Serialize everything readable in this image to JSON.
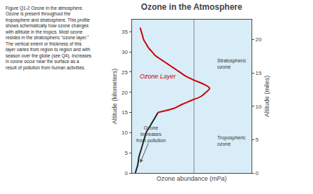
{
  "chart_data": {
    "type": "line",
    "title": "Ozone in the Atmosphere",
    "xlabel": "Ozone abundance (mPa)",
    "ylabel": "Altitude (kilometers)",
    "y2label": "Altitude (miles)",
    "xlim": [
      0,
      1
    ],
    "ylim": [
      0,
      38
    ],
    "yticks": [
      0,
      5,
      10,
      15,
      20,
      25,
      30,
      35
    ],
    "y2lim": [
      0,
      23
    ],
    "y2ticks": [
      0,
      5,
      10,
      15,
      20
    ],
    "tick_labels": "y",
    "grid": false,
    "series": [
      {
        "color": "#222222",
        "y": [
          0,
          1,
          2,
          3,
          4,
          5,
          6,
          7,
          8,
          9,
          10,
          11,
          12,
          13,
          14,
          15
        ],
        "x": [
          0.03,
          0.04,
          0.05,
          0.055,
          0.06,
          0.07,
          0.08,
          0.09,
          0.1,
          0.11,
          0.12,
          0.14,
          0.16,
          0.18,
          0.2,
          0.22
        ]
      },
      {
        "color": "#cc0000",
        "y": [
          15,
          16,
          17,
          18,
          19,
          20,
          21,
          22,
          23,
          24,
          25,
          26,
          27,
          28,
          29,
          30,
          31,
          32,
          33,
          34,
          35,
          36
        ],
        "x": [
          0.22,
          0.35,
          0.42,
          0.5,
          0.58,
          0.62,
          0.65,
          0.6,
          0.52,
          0.45,
          0.4,
          0.35,
          0.3,
          0.25,
          0.2,
          0.17,
          0.14,
          0.12,
          0.1,
          0.09,
          0.08,
          0.07
        ]
      }
    ],
    "reference_lines": [
      {
        "x": 0.52,
        "color": "#888888"
      }
    ],
    "annotations": [
      {
        "text": "Ozone Layer",
        "x": 0.22,
        "y": 24,
        "color": "#cc0000"
      },
      {
        "text": "Stratospheric\nozone",
        "x": 0.7,
        "y": 27,
        "color": "#333333"
      },
      {
        "text": "Tropospheric\nozone",
        "x": 0.7,
        "y": 8,
        "color": "#333333"
      },
      {
        "text": "Ozone\nincreases\nfrom pollution",
        "x": 0.16,
        "y": 9.5,
        "color": "#333333"
      }
    ],
    "arrows": [
      {
        "x": 0.07,
        "y": 2.5,
        "from_x": 0.14,
        "from_y": 7.5,
        "color": "#555555"
      }
    ],
    "caption": "Figure Q1-2 Ozone in the atmosphere.\nOzone is present throughout the\ntroposphere and stratosphere. This profile\nshows schematically how ozone changes\nwith altitude in the tropics. Most ozone\nresides in the stratospheric \"ozone layer.\"\nThe vertical extent or thickness of this\nlayer varies from region to region and with\nseason over the globe (see Q4). Increases\nin ozone occur near the surface as a\nresult of pollution from human activities.",
    "caption_color": "#222222"
  }
}
